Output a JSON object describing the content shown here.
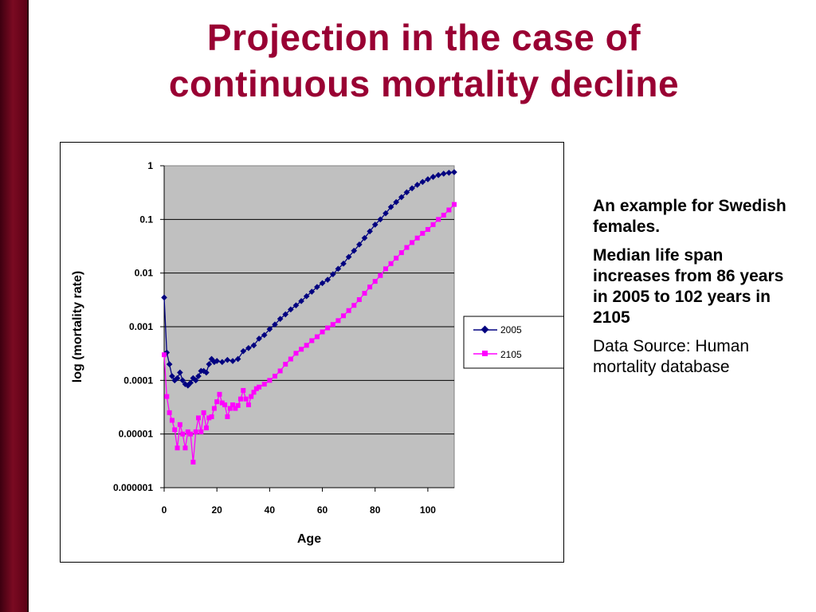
{
  "slide": {
    "title_line1": "Projection in the case of",
    "title_line2": "continuous mortality decline",
    "accent_color": "#990033"
  },
  "notes": {
    "example": "An example for Swedish females.",
    "median": "Median life span increases from 86 years in 2005 to 102 years in 2105",
    "source": "Data Source: Human mortality database"
  },
  "chart_data": {
    "type": "line",
    "y_scale": "log",
    "xlabel": "Age",
    "ylabel": "log (mortality rate)",
    "xlim": [
      0,
      110
    ],
    "ylim": [
      1e-06,
      1
    ],
    "x_ticks": [
      "0",
      "20",
      "40",
      "60",
      "80",
      "100"
    ],
    "y_ticks": [
      "1",
      "0.1",
      "0.01",
      "0.001",
      "0.0001",
      "0.00001",
      "0.000001"
    ],
    "grid": "horizontal",
    "plot_background": "#c0c0c0",
    "legend_position": "right",
    "series": [
      {
        "name": "2005",
        "color": "#000080",
        "marker": "diamond",
        "x": [
          0,
          1,
          2,
          3,
          4,
          5,
          6,
          7,
          8,
          9,
          10,
          11,
          12,
          13,
          14,
          15,
          16,
          17,
          18,
          19,
          20,
          22,
          24,
          26,
          28,
          30,
          32,
          34,
          36,
          38,
          40,
          42,
          44,
          46,
          48,
          50,
          52,
          54,
          56,
          58,
          60,
          62,
          64,
          66,
          68,
          70,
          72,
          74,
          76,
          78,
          80,
          82,
          84,
          86,
          88,
          90,
          92,
          94,
          96,
          98,
          100,
          102,
          104,
          106,
          108,
          110
        ],
        "y": [
          0.0035,
          0.00033,
          0.0002,
          0.00012,
          0.0001,
          0.00011,
          0.00014,
          0.0001,
          8.5e-05,
          8e-05,
          9e-05,
          0.00011,
          0.0001,
          0.00012,
          0.00015,
          0.00015,
          0.00014,
          0.0002,
          0.00025,
          0.00022,
          0.00023,
          0.00022,
          0.00024,
          0.00023,
          0.00025,
          0.00035,
          0.0004,
          0.00045,
          0.0006,
          0.0007,
          0.0009,
          0.0011,
          0.0014,
          0.0017,
          0.0021,
          0.0025,
          0.003,
          0.0037,
          0.0045,
          0.0055,
          0.0065,
          0.0075,
          0.0095,
          0.012,
          0.015,
          0.02,
          0.026,
          0.034,
          0.045,
          0.06,
          0.08,
          0.1,
          0.13,
          0.17,
          0.21,
          0.26,
          0.32,
          0.38,
          0.44,
          0.5,
          0.56,
          0.62,
          0.67,
          0.71,
          0.74,
          0.76
        ]
      },
      {
        "name": "2105",
        "color": "#ff00ff",
        "marker": "square",
        "x": [
          0,
          1,
          2,
          3,
          4,
          5,
          6,
          7,
          8,
          9,
          10,
          11,
          12,
          13,
          14,
          15,
          16,
          17,
          18,
          19,
          20,
          21,
          22,
          23,
          24,
          25,
          26,
          27,
          28,
          29,
          30,
          31,
          32,
          33,
          34,
          35,
          36,
          38,
          40,
          42,
          44,
          46,
          48,
          50,
          52,
          54,
          56,
          58,
          60,
          62,
          64,
          66,
          68,
          70,
          72,
          74,
          76,
          78,
          80,
          82,
          84,
          86,
          88,
          90,
          92,
          94,
          96,
          98,
          100,
          102,
          104,
          106,
          108,
          110
        ],
        "y": [
          0.0003,
          5e-05,
          2.5e-05,
          1.8e-05,
          1.2e-05,
          5.5e-06,
          1.5e-05,
          1e-05,
          5.5e-06,
          1.1e-05,
          1e-05,
          3e-06,
          1.1e-05,
          2e-05,
          1.1e-05,
          2.5e-05,
          1.3e-05,
          2e-05,
          2.1e-05,
          3e-05,
          4e-05,
          5.5e-05,
          3.8e-05,
          3.5e-05,
          2.1e-05,
          3e-05,
          3.5e-05,
          3e-05,
          3.4e-05,
          4.5e-05,
          6.5e-05,
          4.5e-05,
          3.5e-05,
          5e-05,
          6e-05,
          7e-05,
          7.5e-05,
          8.5e-05,
          0.0001,
          0.00012,
          0.00015,
          0.0002,
          0.00025,
          0.00032,
          0.00038,
          0.00045,
          0.00055,
          0.00065,
          0.0008,
          0.00095,
          0.0011,
          0.0013,
          0.0016,
          0.002,
          0.0025,
          0.0032,
          0.0042,
          0.0055,
          0.007,
          0.009,
          0.012,
          0.015,
          0.019,
          0.024,
          0.03,
          0.037,
          0.045,
          0.055,
          0.065,
          0.08,
          0.1,
          0.12,
          0.15,
          0.19
        ]
      }
    ]
  }
}
